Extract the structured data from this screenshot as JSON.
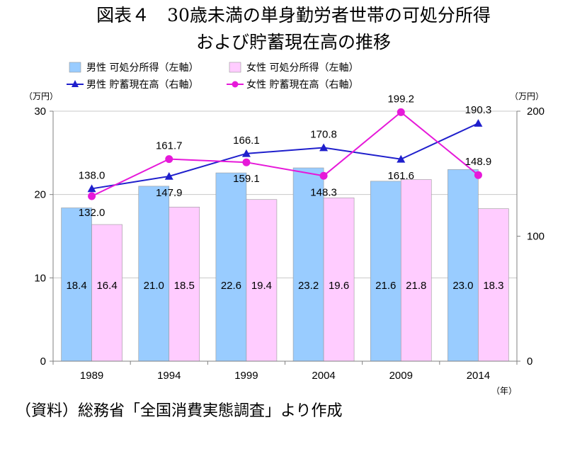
{
  "title_line1": "図表４　30歳未満の単身勤労者世帯の可処分所得",
  "title_line2": "および貯蓄現在高の推移",
  "source": "（資料）総務省「全国消費実態調査」より作成",
  "chart_data": {
    "type": "bar",
    "categories": [
      "1989",
      "1994",
      "1999",
      "2004",
      "2009",
      "2014"
    ],
    "left_unit": "（万円）",
    "right_unit": "（万円）",
    "x_unit": "（年）",
    "left_ylim": [
      0,
      30
    ],
    "left_ticks": [
      "0",
      "10",
      "20",
      "30"
    ],
    "right_ylim": [
      0,
      200
    ],
    "right_ticks": [
      "0",
      "100",
      "200"
    ],
    "series": [
      {
        "name": "男性 可処分所得（左軸）",
        "kind": "bar",
        "axis": "left",
        "color": "#99ccff",
        "values": [
          18.4,
          21.0,
          22.6,
          23.2,
          21.6,
          23.0
        ],
        "labels": [
          "18.4",
          "21.0",
          "22.6",
          "23.2",
          "21.6",
          "23.0"
        ]
      },
      {
        "name": "女性 可処分所得（左軸）",
        "kind": "bar",
        "axis": "left",
        "color": "#ffccff",
        "values": [
          16.4,
          18.5,
          19.4,
          19.6,
          21.8,
          18.3
        ],
        "labels": [
          "16.4",
          "18.5",
          "19.4",
          "19.6",
          "21.8",
          "18.3"
        ]
      },
      {
        "name": "男性 貯蓄現在高（右軸）",
        "kind": "line",
        "axis": "right",
        "color": "#1f1fcc",
        "marker": "triangle",
        "values": [
          138.0,
          147.9,
          166.1,
          170.8,
          161.6,
          190.3
        ],
        "labels": [
          "138.0",
          "147.9",
          "166.1",
          "170.8",
          "161.6",
          "190.3"
        ]
      },
      {
        "name": "女性 貯蓄現在高（右軸）",
        "kind": "line",
        "axis": "right",
        "color": "#e619d9",
        "marker": "circle",
        "values": [
          132.0,
          161.7,
          159.1,
          148.3,
          199.2,
          148.9
        ],
        "labels": [
          "132.0",
          "161.7",
          "159.1",
          "148.3",
          "199.2",
          "148.9"
        ]
      }
    ]
  }
}
